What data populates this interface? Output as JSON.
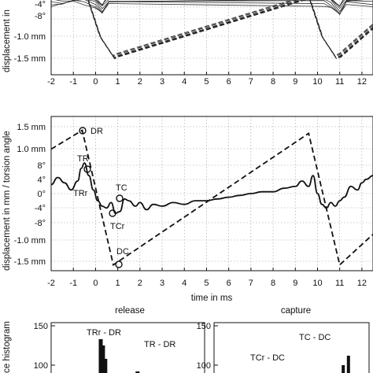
{
  "chart_data": [
    {
      "type": "line",
      "title": "",
      "xlabel": "",
      "ylabel": "displacement in",
      "xlim": [
        -2,
        12.5
      ],
      "x_ticks": [
        "-2",
        "-1",
        "0",
        "1",
        "2",
        "3",
        "4",
        "5",
        "6",
        "7",
        "8",
        "9",
        "10",
        "11",
        "12"
      ],
      "y_tick_labels": [
        "-4°",
        "-8°",
        "-1.0 mm",
        "-1.5 mm"
      ],
      "grid": true,
      "series": [
        {
          "style": "dashed",
          "description_of_marks": "repeated sawtooth displacement traces",
          "x": [
            -2,
            -0.4,
            0.2,
            0.8,
            0.95,
            9.6,
            10.2,
            10.8,
            11.0,
            12.5
          ],
          "y": [
            0.2,
            0.2,
            -0.9,
            -1.45,
            -1.4,
            0.2,
            -0.9,
            -1.45,
            -1.4,
            -0.6
          ]
        },
        {
          "style": "solid",
          "description_of_marks": "repeated oscillating torsion traces clipped at top",
          "x": [
            -2,
            -1.5,
            -1,
            -0.5,
            0,
            0.3,
            0.6,
            10.3,
            10.6,
            11,
            11.3,
            12.5
          ],
          "y": [
            0.1,
            0.12,
            0.15,
            0.12,
            0.05,
            -0.15,
            0.1,
            0.1,
            0.05,
            -0.2,
            0.1,
            0.1
          ]
        }
      ]
    },
    {
      "type": "line",
      "title": "",
      "xlabel": "time in ms",
      "ylabel": "displacement in mm / torsion angle",
      "xlim": [
        -2,
        12.5
      ],
      "x_ticks": [
        "-2",
        "-1",
        "0",
        "1",
        "2",
        "3",
        "4",
        "5",
        "6",
        "7",
        "8",
        "9",
        "10",
        "11",
        "12"
      ],
      "y_tick_labels": [
        "1.5 mm",
        "1.0 mm",
        "8°",
        "4°",
        "0°",
        "-4°",
        "-8°",
        "-1.0 mm",
        "-1.5 mm"
      ],
      "grid": true,
      "annotations": [
        "DR",
        "TR",
        "TRr",
        "TC",
        "TCr",
        "DC"
      ],
      "series": [
        {
          "name": "",
          "style": "dashed",
          "quantity": "displacement",
          "unit": "mm",
          "x": [
            -2,
            -0.6,
            0.8,
            9.6,
            11.0,
            12.5
          ],
          "y": [
            1.0,
            1.42,
            -1.58,
            1.35,
            -1.58,
            -0.9
          ]
        },
        {
          "name": "",
          "style": "solid",
          "quantity": "torsion angle",
          "unit": "deg",
          "x": [
            -2,
            -1.7,
            -1.4,
            -1.1,
            -0.8,
            -0.65,
            -0.5,
            -0.3,
            -0.1,
            0.1,
            0.3,
            0.5,
            0.7,
            0.9,
            1.1,
            1.3,
            1.5,
            1.8,
            2.0,
            2.3,
            2.6,
            3.0,
            3.5,
            4.0,
            4.5,
            5.0,
            5.5,
            6.0,
            6.5,
            7.0,
            7.5,
            8.0,
            8.5,
            9.0,
            9.3,
            9.6,
            9.8,
            10.0,
            10.2,
            10.4,
            10.6,
            10.8,
            11.0,
            11.2,
            11.5,
            11.8,
            12.0,
            12.2,
            12.5
          ],
          "y": [
            2.5,
            4.5,
            3.0,
            1.0,
            3.5,
            7.0,
            8.5,
            5.0,
            1.0,
            -2.0,
            -3.5,
            -4.0,
            -2.5,
            -5.5,
            -5.0,
            -1.5,
            -2.0,
            -3.5,
            -2.5,
            -4.5,
            -3.0,
            -3.5,
            -2.5,
            -3.0,
            -2.0,
            -2.0,
            -1.5,
            -1.0,
            -0.5,
            0.0,
            0.5,
            0.5,
            1.5,
            2.0,
            3.5,
            2.0,
            5.0,
            0.0,
            -3.0,
            -4.0,
            -2.5,
            -3.5,
            -2.0,
            -1.0,
            2.0,
            1.0,
            3.0,
            4.0,
            5.0
          ]
        }
      ]
    },
    {
      "type": "bar",
      "title": "release",
      "xlabel": "",
      "ylabel": "ce histogram",
      "y_tick_labels": [
        "150",
        "100"
      ],
      "annotations": [
        "TRr - DR",
        "TR - DR"
      ],
      "bars": [
        {
          "x": 0.62,
          "value": 133
        },
        {
          "x": 0.65,
          "value": 125
        },
        {
          "x": 0.68,
          "value": 108
        },
        {
          "x": 1.1,
          "value": 92
        }
      ]
    },
    {
      "type": "bar",
      "title": "capture",
      "xlabel": "",
      "ylabel": "",
      "y_tick_labels": [
        "150",
        "100"
      ],
      "annotations": [
        "TC - DC",
        "TCr - DC"
      ],
      "bars": [
        {
          "x": 0.98,
          "value": 100
        },
        {
          "x": 1.02,
          "value": 112
        }
      ]
    }
  ]
}
